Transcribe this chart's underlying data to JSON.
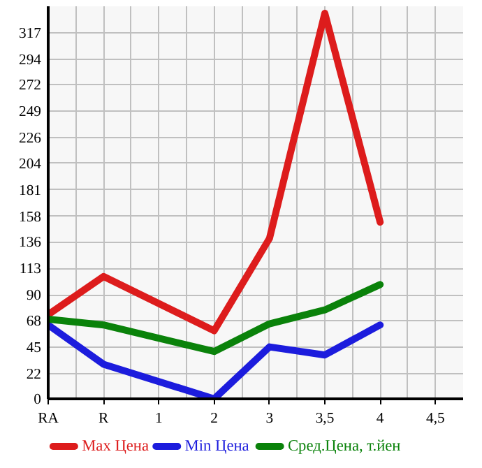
{
  "chart_data": {
    "type": "line",
    "categories": [
      "RA",
      "R",
      "1",
      "2",
      "3",
      "3,5",
      "4",
      "4,5"
    ],
    "series": [
      {
        "name": "Max Цена",
        "color": "#dd1c1c",
        "x": [
          "RA",
          "R",
          "2",
          "3",
          "3,5",
          "4"
        ],
        "values": [
          73,
          106,
          59,
          139,
          334,
          153
        ]
      },
      {
        "name": "Min Цена",
        "color": "#1c1cdd",
        "x": [
          "RA",
          "R",
          "2",
          "3",
          "3,5",
          "4"
        ],
        "values": [
          64,
          30,
          0,
          45,
          38,
          64
        ]
      },
      {
        "name": "Сред.Цена, т.йен",
        "color": "#0a820a",
        "x": [
          "RA",
          "R",
          "2",
          "3",
          "3,5",
          "4"
        ],
        "values": [
          69,
          64,
          41,
          65,
          77,
          99
        ]
      }
    ],
    "ylim": [
      0,
      340
    ],
    "yticks": [
      0,
      22,
      45,
      68,
      90,
      113,
      136,
      158,
      181,
      204,
      226,
      249,
      272,
      294,
      317
    ],
    "grid": true,
    "legend": "bottom",
    "line_style": "solid",
    "marker": "none"
  }
}
